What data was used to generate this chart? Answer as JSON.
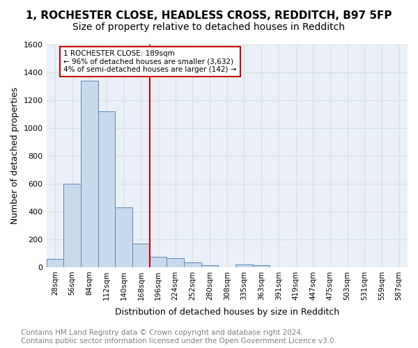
{
  "title1": "1, ROCHESTER CLOSE, HEADLESS CROSS, REDDITCH, B97 5FP",
  "title2": "Size of property relative to detached houses in Redditch",
  "xlabel": "Distribution of detached houses by size in Redditch",
  "ylabel": "Number of detached properties",
  "footer": "Contains HM Land Registry data © Crown copyright and database right 2024.\nContains public sector information licensed under the Open Government Licence v3.0.",
  "bin_labels": [
    "28sqm",
    "56sqm",
    "84sqm",
    "112sqm",
    "140sqm",
    "168sqm",
    "196sqm",
    "224sqm",
    "252sqm",
    "280sqm",
    "308sqm",
    "335sqm",
    "363sqm",
    "391sqm",
    "419sqm",
    "447sqm",
    "475sqm",
    "503sqm",
    "531sqm",
    "559sqm",
    "587sqm"
  ],
  "bar_heights": [
    60,
    600,
    1340,
    1120,
    430,
    170,
    75,
    65,
    35,
    15,
    0,
    20,
    15,
    0,
    0,
    0,
    0,
    0,
    0,
    0,
    0
  ],
  "bar_color": "#c9d9ec",
  "bar_edge_color": "#5a8ab5",
  "vline_x": 6,
  "vline_color": "#cc0000",
  "annotation_text": "1 ROCHESTER CLOSE: 189sqm\n← 96% of detached houses are smaller (3,632)\n4% of semi-detached houses are larger (142) →",
  "annotation_box_color": "white",
  "annotation_box_edge_color": "#cc0000",
  "ylim": [
    0,
    1600
  ],
  "yticks": [
    0,
    200,
    400,
    600,
    800,
    1000,
    1200,
    1400,
    1600
  ],
  "grid_color": "#dddddd",
  "bg_color": "#eaf0f8",
  "title1_fontsize": 11,
  "title2_fontsize": 10,
  "xlabel_fontsize": 9,
  "ylabel_fontsize": 9,
  "footer_fontsize": 7.5
}
